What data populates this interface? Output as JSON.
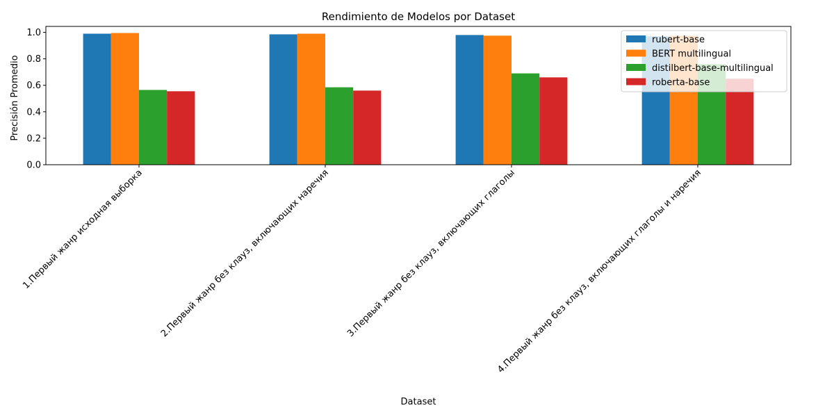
{
  "chart_data": {
    "type": "bar",
    "title": "Rendimiento de Modelos por Dataset",
    "xlabel": "Dataset",
    "ylabel": "Precisión Promedio",
    "ylim": [
      0,
      1.045
    ],
    "yticks": [
      "0.0",
      "0.2",
      "0.4",
      "0.6",
      "0.8",
      "1.0"
    ],
    "categories": [
      "1.Первый жанр исходная выборка",
      "2.Первый жанр без клауз, включающих наречия",
      "3.Первый жанр без клауз, включающих глаголы",
      "4.Первый жанр без клауз, включающих глаголы и наречия"
    ],
    "series": [
      {
        "name": "rubert-base",
        "color": "#1f77b4",
        "values": [
          0.99,
          0.985,
          0.98,
          0.97
        ]
      },
      {
        "name": "BERT multilingual",
        "color": "#ff7f0e",
        "values": [
          0.995,
          0.99,
          0.975,
          0.975
        ]
      },
      {
        "name": "distilbert-base-multilingual",
        "color": "#2ca02c",
        "values": [
          0.565,
          0.585,
          0.69,
          0.76
        ]
      },
      {
        "name": "roberta-base",
        "color": "#d62728",
        "values": [
          0.555,
          0.56,
          0.66,
          0.65
        ]
      }
    ],
    "legend_position": "top-right",
    "grid": false
  }
}
